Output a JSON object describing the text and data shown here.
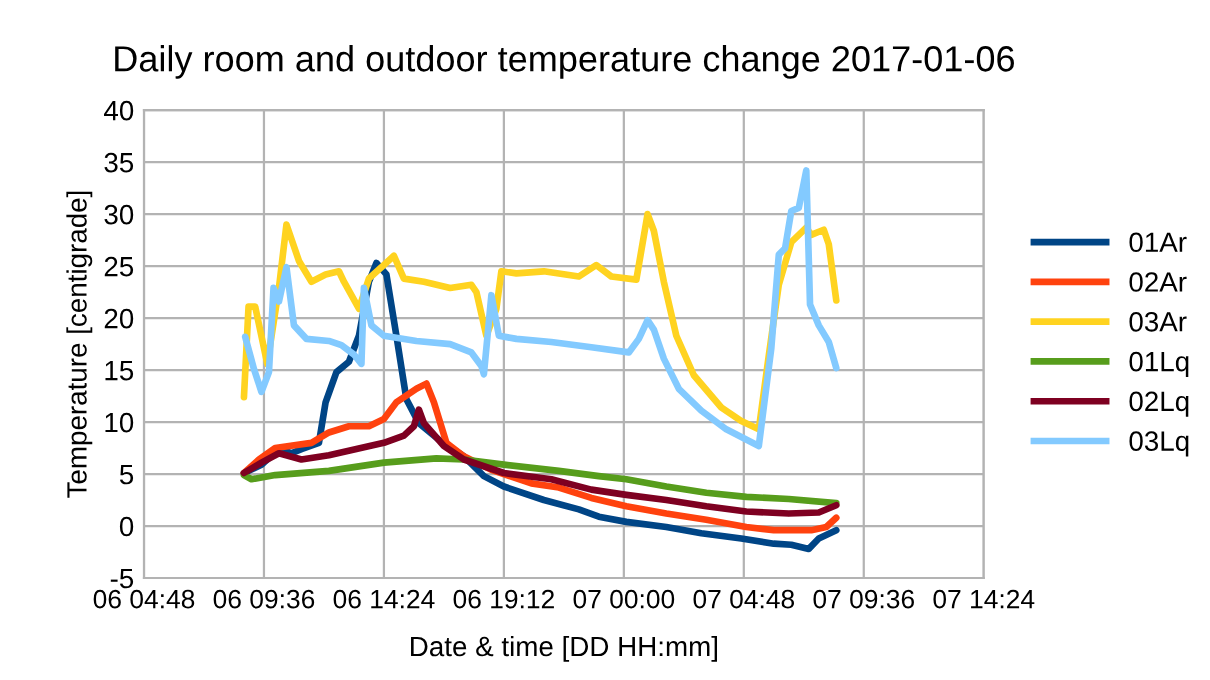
{
  "chart_data": {
    "type": "line",
    "title": "Daily room and outdoor temperature change 2017-01-06",
    "xlabel": "Date & time [DD HH:mm]",
    "ylabel": "Temperature [centigrade]",
    "xlim": [
      "2017-01-06T04:48",
      "2017-01-07T14:24"
    ],
    "xticks": [
      {
        "value": "2017-01-06T04:48",
        "label": "06 04:48"
      },
      {
        "value": "2017-01-06T09:36",
        "label": "06 09:36"
      },
      {
        "value": "2017-01-06T14:24",
        "label": "06 14:24"
      },
      {
        "value": "2017-01-06T19:12",
        "label": "06 19:12"
      },
      {
        "value": "2017-01-07T00:00",
        "label": "07 00:00"
      },
      {
        "value": "2017-01-07T04:48",
        "label": "07 04:48"
      },
      {
        "value": "2017-01-07T09:36",
        "label": "07 09:36"
      },
      {
        "value": "2017-01-07T14:24",
        "label": "07 14:24"
      }
    ],
    "ylim": [
      -5,
      40
    ],
    "yticks": [
      -5,
      0,
      5,
      10,
      15,
      20,
      25,
      30,
      35,
      40
    ],
    "grid": true,
    "legend": "right",
    "marker": "none",
    "line_style": "solid",
    "series": [
      {
        "name": "01Ar",
        "color": "#004586",
        "x": [
          "2017-01-06T08:48",
          "2017-01-06T09:30",
          "2017-01-06T10:12",
          "2017-01-06T10:42",
          "2017-01-06T11:06",
          "2017-01-06T11:48",
          "2017-01-06T12:04",
          "2017-01-06T12:30",
          "2017-01-06T13:00",
          "2017-01-06T13:24",
          "2017-01-06T13:48",
          "2017-01-06T14:06",
          "2017-01-06T14:30",
          "2017-01-06T14:54",
          "2017-01-06T15:18",
          "2017-01-06T15:48",
          "2017-01-06T16:36",
          "2017-01-06T17:36",
          "2017-01-06T18:24",
          "2017-01-06T19:12",
          "2017-01-06T20:48",
          "2017-01-06T22:12",
          "2017-01-06T23:00",
          "2017-01-07T00:06",
          "2017-01-07T01:42",
          "2017-01-07T03:06",
          "2017-01-07T04:42",
          "2017-01-07T06:00",
          "2017-01-07T06:42",
          "2017-01-07T07:24",
          "2017-01-07T07:48",
          "2017-01-07T08:30"
        ],
        "values": [
          5.1,
          5.9,
          7.4,
          7.0,
          7.4,
          8.0,
          11.9,
          14.8,
          15.8,
          18.3,
          23.5,
          25.3,
          24.2,
          18.3,
          12.2,
          9.9,
          8.3,
          6.7,
          4.8,
          3.8,
          2.5,
          1.6,
          0.9,
          0.4,
          -0.1,
          -0.7,
          -1.2,
          -1.7,
          -1.8,
          -2.2,
          -1.2,
          -0.4
        ]
      },
      {
        "name": "02Ar",
        "color": "#ff420e",
        "x": [
          "2017-01-06T08:48",
          "2017-01-06T09:24",
          "2017-01-06T10:03",
          "2017-01-06T11:30",
          "2017-01-06T12:12",
          "2017-01-06T13:00",
          "2017-01-06T13:48",
          "2017-01-06T14:24",
          "2017-01-06T14:54",
          "2017-01-06T15:42",
          "2017-01-06T16:06",
          "2017-01-06T16:24",
          "2017-01-06T16:54",
          "2017-01-06T17:36",
          "2017-01-06T18:42",
          "2017-01-06T20:18",
          "2017-01-06T21:24",
          "2017-01-06T22:42",
          "2017-01-07T00:06",
          "2017-01-07T01:42",
          "2017-01-07T03:18",
          "2017-01-07T04:54",
          "2017-01-07T06:00",
          "2017-01-07T07:30",
          "2017-01-07T08:06",
          "2017-01-07T08:30"
        ],
        "values": [
          5.1,
          6.4,
          7.5,
          8.0,
          9.0,
          9.6,
          9.6,
          10.3,
          11.9,
          13.2,
          13.7,
          11.9,
          8.0,
          6.7,
          5.4,
          4.1,
          3.7,
          2.7,
          1.9,
          1.2,
          0.6,
          -0.1,
          -0.4,
          -0.4,
          -0.1,
          0.8
        ]
      },
      {
        "name": "03Ar",
        "color": "#ffd320",
        "x": [
          "2017-01-06T08:48",
          "2017-01-06T08:59",
          "2017-01-06T09:15",
          "2017-01-06T09:44",
          "2017-01-06T10:12",
          "2017-01-06T10:30",
          "2017-01-06T11:00",
          "2017-01-06T11:30",
          "2017-01-06T12:04",
          "2017-01-06T12:36",
          "2017-01-06T12:48",
          "2017-01-06T13:24",
          "2017-01-06T13:48",
          "2017-01-06T14:24",
          "2017-01-06T14:48",
          "2017-01-06T15:12",
          "2017-01-06T16:00",
          "2017-01-06T17:03",
          "2017-01-06T17:54",
          "2017-01-06T18:06",
          "2017-01-06T18:30",
          "2017-01-06T18:54",
          "2017-01-06T19:06",
          "2017-01-06T19:42",
          "2017-01-06T20:48",
          "2017-01-06T22:12",
          "2017-01-06T22:54",
          "2017-01-06T23:30",
          "2017-01-07T00:30",
          "2017-01-07T00:57",
          "2017-01-07T01:12",
          "2017-01-07T01:36",
          "2017-01-07T02:06",
          "2017-01-07T02:48",
          "2017-01-07T03:54",
          "2017-01-07T04:42",
          "2017-01-07T05:24",
          "2017-01-07T05:48",
          "2017-01-07T06:12",
          "2017-01-07T06:42",
          "2017-01-07T07:18",
          "2017-01-07T07:30",
          "2017-01-07T08:00",
          "2017-01-07T08:12",
          "2017-01-07T08:30"
        ],
        "values": [
          12.4,
          21.1,
          21.1,
          15.6,
          22.9,
          29.0,
          25.5,
          23.5,
          24.2,
          24.5,
          23.5,
          20.9,
          23.8,
          25.1,
          26.0,
          23.8,
          23.5,
          22.9,
          23.2,
          22.5,
          18.3,
          20.9,
          24.5,
          24.3,
          24.5,
          24.0,
          25.1,
          24.0,
          23.7,
          30.0,
          28.4,
          23.5,
          18.3,
          14.5,
          11.4,
          10.1,
          9.3,
          16.4,
          23.2,
          27.3,
          28.7,
          28.0,
          28.5,
          27.1,
          21.7
        ]
      },
      {
        "name": "01Lq",
        "color": "#579d1c",
        "x": [
          "2017-01-06T08:48",
          "2017-01-06T09:06",
          "2017-01-06T10:03",
          "2017-01-06T12:12",
          "2017-01-06T14:24",
          "2017-01-06T16:30",
          "2017-01-06T17:36",
          "2017-01-06T19:12",
          "2017-01-06T21:24",
          "2017-01-06T23:00",
          "2017-01-07T00:06",
          "2017-01-07T01:42",
          "2017-01-07T03:18",
          "2017-01-07T04:54",
          "2017-01-07T06:36",
          "2017-01-07T08:30"
        ],
        "values": [
          4.9,
          4.5,
          4.9,
          5.3,
          6.1,
          6.5,
          6.4,
          5.9,
          5.3,
          4.8,
          4.5,
          3.8,
          3.2,
          2.8,
          2.6,
          2.2
        ]
      },
      {
        "name": "02Lq",
        "color": "#7e0021",
        "x": [
          "2017-01-06T08:48",
          "2017-01-06T09:30",
          "2017-01-06T10:12",
          "2017-01-06T11:06",
          "2017-01-06T12:12",
          "2017-01-06T13:18",
          "2017-01-06T14:24",
          "2017-01-06T15:12",
          "2017-01-06T15:36",
          "2017-01-06T15:48",
          "2017-01-06T16:00",
          "2017-01-06T16:48",
          "2017-01-06T17:36",
          "2017-01-06T19:12",
          "2017-01-06T21:06",
          "2017-01-06T22:42",
          "2017-01-07T00:06",
          "2017-01-07T01:42",
          "2017-01-07T03:18",
          "2017-01-07T04:54",
          "2017-01-07T06:36",
          "2017-01-07T07:48",
          "2017-01-07T08:30"
        ],
        "values": [
          5.1,
          6.1,
          7.0,
          6.4,
          6.8,
          7.4,
          8.0,
          8.7,
          9.6,
          11.2,
          9.9,
          7.7,
          6.4,
          5.1,
          4.5,
          3.5,
          3.0,
          2.5,
          1.9,
          1.4,
          1.2,
          1.3,
          2.0
        ]
      },
      {
        "name": "03Lq",
        "color": "#83caff",
        "x": [
          "2017-01-06T08:51",
          "2017-01-06T09:12",
          "2017-01-06T09:30",
          "2017-01-06T09:48",
          "2017-01-06T09:59",
          "2017-01-06T10:12",
          "2017-01-06T10:30",
          "2017-01-06T10:48",
          "2017-01-06T11:18",
          "2017-01-06T12:12",
          "2017-01-06T12:42",
          "2017-01-06T13:12",
          "2017-01-06T13:30",
          "2017-01-06T13:36",
          "2017-01-06T13:54",
          "2017-01-06T14:24",
          "2017-01-06T15:42",
          "2017-01-06T17:03",
          "2017-01-06T17:54",
          "2017-01-06T18:18",
          "2017-01-06T18:24",
          "2017-01-06T18:42",
          "2017-01-06T19:00",
          "2017-01-06T19:42",
          "2017-01-06T21:06",
          "2017-01-06T22:42",
          "2017-01-07T00:12",
          "2017-01-07T00:36",
          "2017-01-07T00:57",
          "2017-01-07T01:12",
          "2017-01-07T01:36",
          "2017-01-07T02:12",
          "2017-01-07T03:06",
          "2017-01-07T04:06",
          "2017-01-07T05:24",
          "2017-01-07T05:54",
          "2017-01-07T06:12",
          "2017-01-07T06:27",
          "2017-01-07T06:42",
          "2017-01-07T07:00",
          "2017-01-07T07:18",
          "2017-01-07T07:27",
          "2017-01-07T07:48",
          "2017-01-07T08:12",
          "2017-01-07T08:30"
        ],
        "values": [
          18.2,
          15.1,
          12.9,
          14.8,
          22.9,
          21.6,
          24.9,
          19.3,
          18.0,
          17.8,
          17.4,
          16.5,
          15.6,
          22.9,
          19.3,
          18.3,
          17.8,
          17.5,
          16.7,
          15.4,
          14.6,
          22.2,
          18.3,
          18.0,
          17.7,
          17.2,
          16.7,
          18.0,
          19.8,
          18.9,
          16.1,
          13.2,
          11.1,
          9.3,
          7.7,
          17.1,
          26.1,
          26.7,
          30.3,
          30.6,
          34.2,
          21.3,
          19.3,
          17.7,
          15.2
        ]
      }
    ]
  }
}
